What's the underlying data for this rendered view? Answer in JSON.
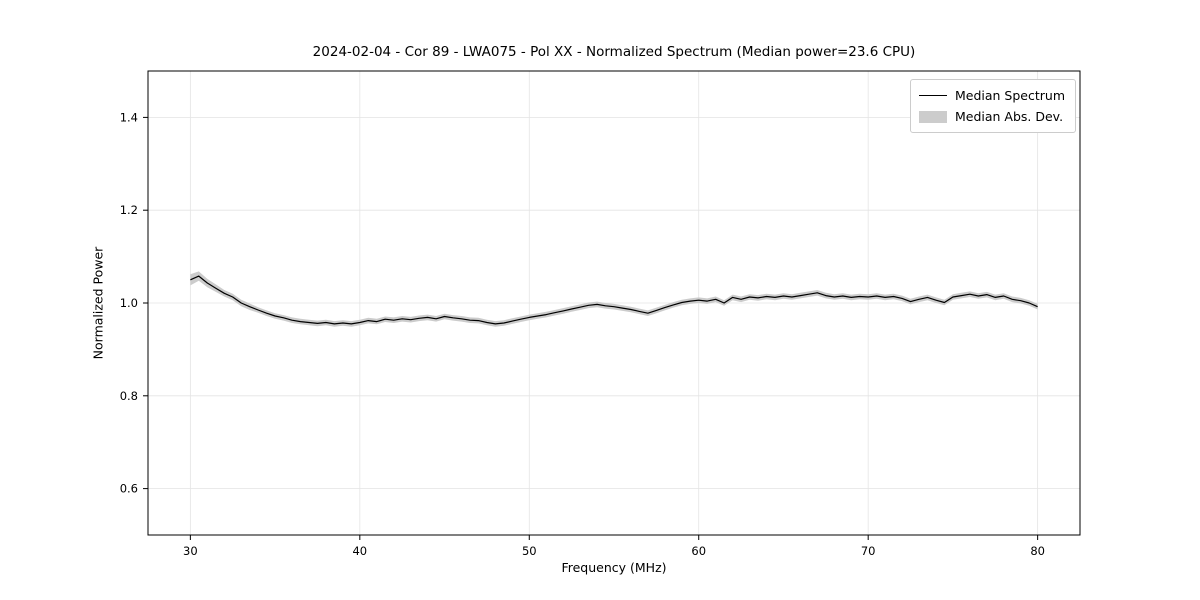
{
  "chart_data": {
    "type": "line",
    "title": "2024-02-04 - Cor 89 - LWA075 - Pol XX - Normalized Spectrum (Median power=23.6 CPU)",
    "xlabel": "Frequency (MHz)",
    "ylabel": "Normalized Power",
    "xlim": [
      27.5,
      82.5
    ],
    "ylim": [
      0.5,
      1.5
    ],
    "xticks": [
      30,
      40,
      50,
      60,
      70,
      80
    ],
    "yticks": [
      0.6,
      0.8,
      1.0,
      1.2,
      1.4
    ],
    "grid": true,
    "legend_position": "upper right",
    "median_power_cpu": 23.6,
    "x": [
      30,
      30.5,
      31,
      31.5,
      32,
      32.5,
      33,
      33.5,
      34,
      34.5,
      35,
      35.5,
      36,
      36.5,
      37,
      37.5,
      38,
      38.5,
      39,
      39.5,
      40,
      40.5,
      41,
      41.5,
      42,
      42.5,
      43,
      43.5,
      44,
      44.5,
      45,
      45.5,
      46,
      46.5,
      47,
      47.5,
      48,
      48.5,
      49,
      49.5,
      50,
      50.5,
      51,
      51.5,
      52,
      52.5,
      53,
      53.5,
      54,
      54.5,
      55,
      55.5,
      56,
      56.5,
      57,
      57.5,
      58,
      58.5,
      59,
      59.5,
      60,
      60.5,
      61,
      61.5,
      62,
      62.5,
      63,
      63.5,
      64,
      64.5,
      65,
      65.5,
      66,
      66.5,
      67,
      67.5,
      68,
      68.5,
      69,
      69.5,
      70,
      70.5,
      71,
      71.5,
      72,
      72.5,
      73,
      73.5,
      74,
      74.5,
      75,
      75.5,
      76,
      76.5,
      77,
      77.5,
      78,
      78.5,
      79,
      79.5,
      80
    ],
    "series": [
      {
        "name": "Median Spectrum",
        "type": "line",
        "color": "#000000",
        "y": [
          1.05,
          1.058,
          1.043,
          1.032,
          1.021,
          1.013,
          1.0,
          0.992,
          0.985,
          0.978,
          0.972,
          0.968,
          0.963,
          0.96,
          0.958,
          0.956,
          0.958,
          0.955,
          0.957,
          0.955,
          0.958,
          0.962,
          0.96,
          0.965,
          0.963,
          0.966,
          0.964,
          0.967,
          0.969,
          0.966,
          0.971,
          0.968,
          0.966,
          0.963,
          0.962,
          0.958,
          0.955,
          0.957,
          0.961,
          0.965,
          0.969,
          0.972,
          0.975,
          0.979,
          0.983,
          0.987,
          0.991,
          0.995,
          0.997,
          0.994,
          0.992,
          0.989,
          0.986,
          0.982,
          0.978,
          0.984,
          0.99,
          0.996,
          1.001,
          1.004,
          1.006,
          1.004,
          1.008,
          1.0,
          1.012,
          1.008,
          1.013,
          1.011,
          1.014,
          1.012,
          1.015,
          1.013,
          1.016,
          1.019,
          1.022,
          1.016,
          1.013,
          1.015,
          1.012,
          1.014,
          1.013,
          1.015,
          1.012,
          1.014,
          1.01,
          1.003,
          1.008,
          1.012,
          1.006,
          1.001,
          1.013,
          1.016,
          1.019,
          1.015,
          1.018,
          1.012,
          1.015,
          1.008,
          1.005,
          1.0,
          0.992
        ]
      },
      {
        "name": "Median Abs. Dev.",
        "type": "band",
        "color": "#cccccc",
        "halfwidth": [
          0.012,
          0.01,
          0.009,
          0.008,
          0.007,
          0.007,
          0.007,
          0.007,
          0.006,
          0.006,
          0.006,
          0.006,
          0.006,
          0.006,
          0.006,
          0.006,
          0.006,
          0.006,
          0.006,
          0.006,
          0.006,
          0.006,
          0.006,
          0.006,
          0.006,
          0.006,
          0.006,
          0.006,
          0.006,
          0.006,
          0.006,
          0.006,
          0.006,
          0.006,
          0.006,
          0.006,
          0.006,
          0.006,
          0.006,
          0.006,
          0.006,
          0.006,
          0.006,
          0.006,
          0.006,
          0.006,
          0.006,
          0.006,
          0.006,
          0.006,
          0.006,
          0.006,
          0.006,
          0.006,
          0.006,
          0.006,
          0.006,
          0.006,
          0.006,
          0.006,
          0.006,
          0.006,
          0.006,
          0.006,
          0.006,
          0.006,
          0.006,
          0.006,
          0.006,
          0.006,
          0.006,
          0.006,
          0.006,
          0.006,
          0.006,
          0.006,
          0.006,
          0.006,
          0.006,
          0.006,
          0.006,
          0.006,
          0.006,
          0.006,
          0.006,
          0.006,
          0.006,
          0.006,
          0.006,
          0.006,
          0.006,
          0.006,
          0.006,
          0.006,
          0.006,
          0.006,
          0.006,
          0.006,
          0.006,
          0.006,
          0.006
        ]
      }
    ]
  }
}
